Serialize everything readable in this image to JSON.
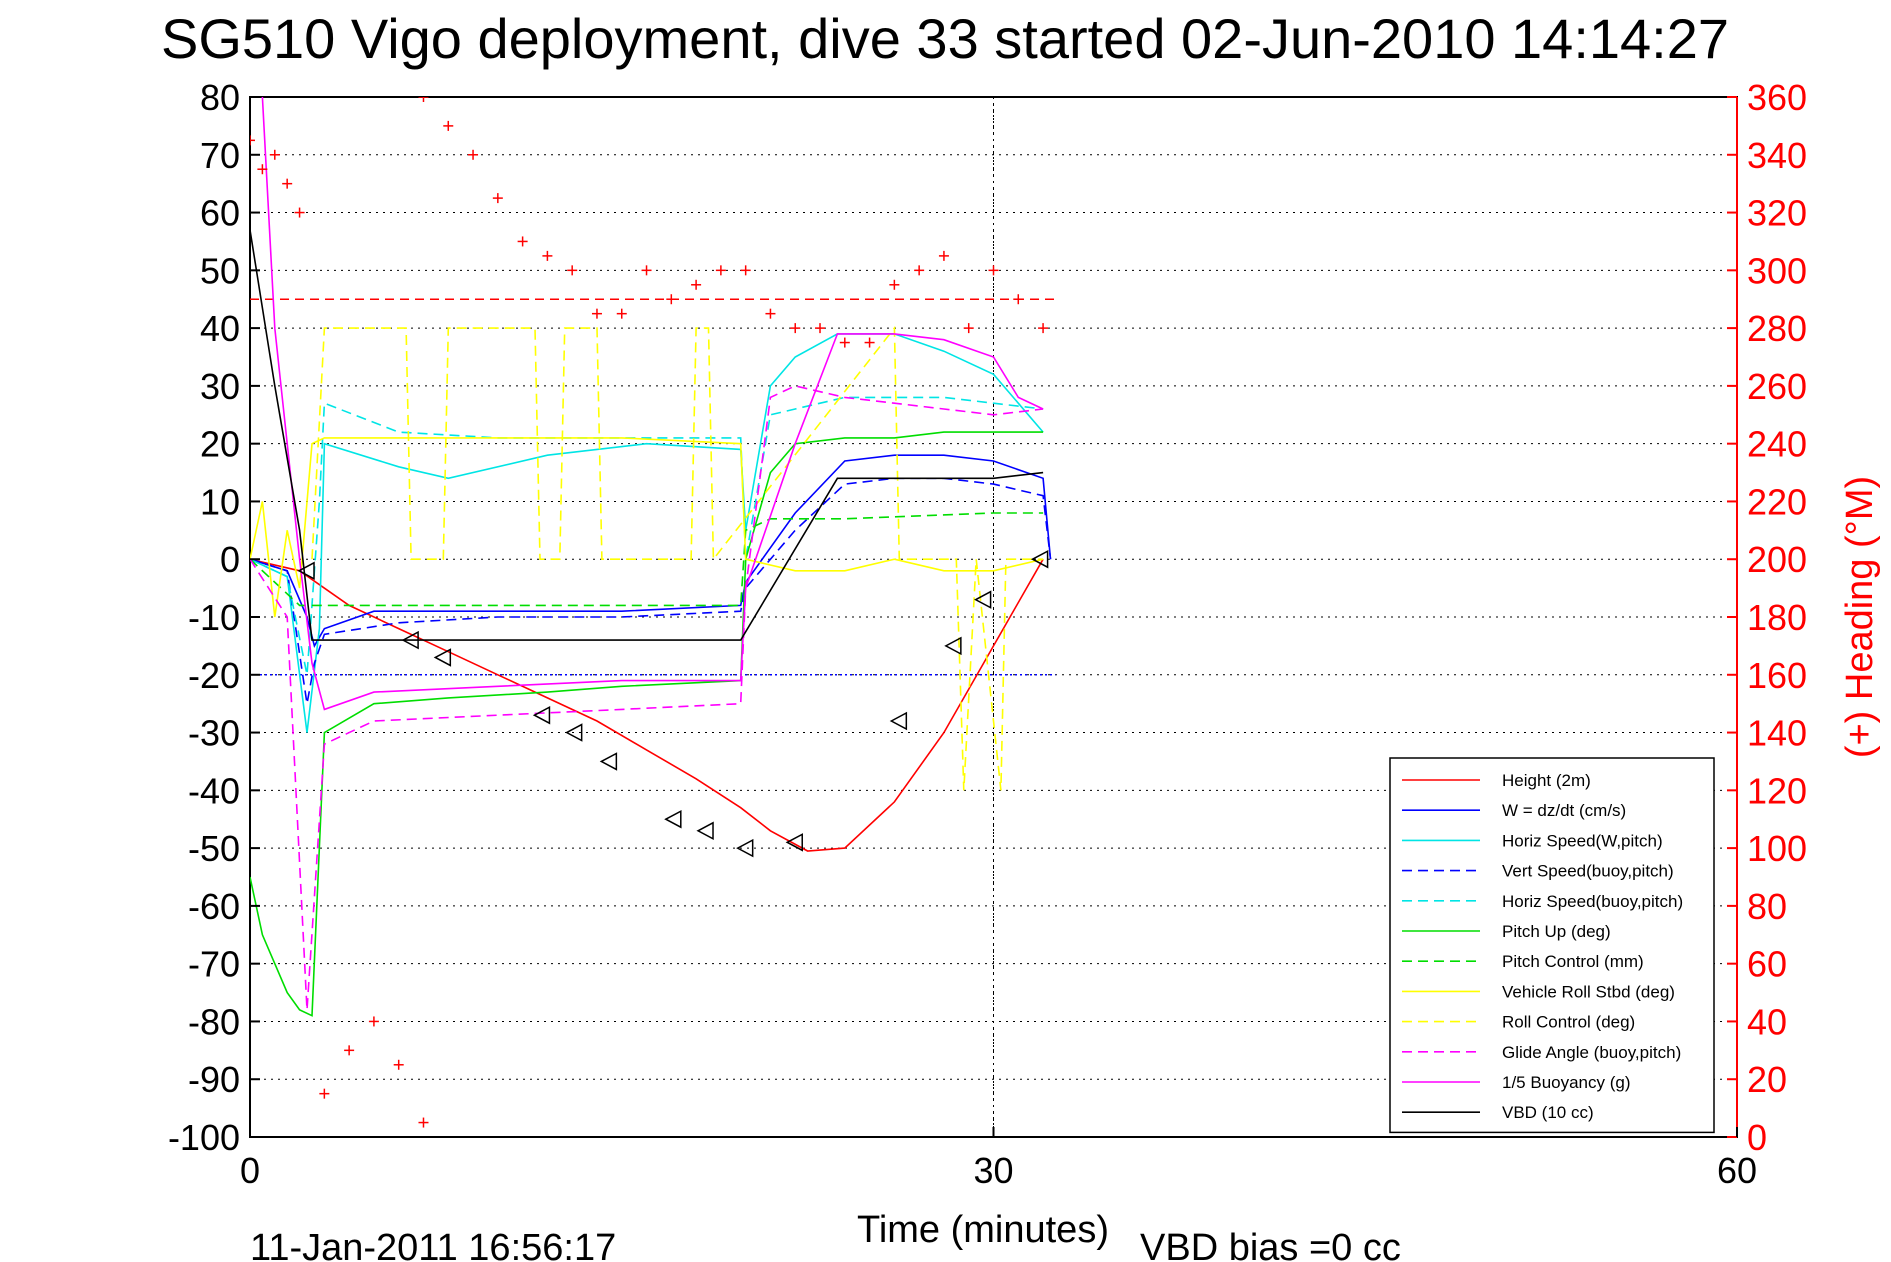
{
  "chart_data": {
    "type": "line",
    "title": "SG510 Vigo deployment, dive 33 started 02-Jun-2010 14:14:27",
    "xlabel": "Time (minutes)",
    "ylabel_right": "(+) Heading (°M)",
    "footer_left": "11-Jan-2011 16:56:17",
    "footer_right": "VBD bias =0 cc",
    "xlim": [
      0,
      60
    ],
    "ylim": [
      -100,
      80
    ],
    "y2lim": [
      0,
      360
    ],
    "x_ticks": [
      "0",
      "30",
      "60"
    ],
    "y_ticks": [
      "80",
      "70",
      "60",
      "50",
      "40",
      "30",
      "20",
      "10",
      "0",
      "-10",
      "-20",
      "-30",
      "-40",
      "-50",
      "-60",
      "-70",
      "-80",
      "-90",
      "-100"
    ],
    "y2_ticks": [
      "360",
      "340",
      "320",
      "300",
      "280",
      "260",
      "240",
      "220",
      "200",
      "180",
      "160",
      "140",
      "120",
      "100",
      "80",
      "60",
      "40",
      "20",
      "0"
    ],
    "grid": true,
    "legend_position": "bottom-right",
    "reference_lines": {
      "heading_target_deg": 290,
      "dotted_y": -20,
      "vertical_x": 30
    },
    "series": [
      {
        "name": "Height (2m)",
        "color": "#ff0000",
        "style": "solid",
        "x": [
          0,
          2,
          4,
          6,
          8,
          10,
          12,
          14,
          16,
          18,
          19.8,
          21,
          22.5,
          24,
          26,
          28,
          30,
          32
        ],
        "y": [
          0,
          -2,
          -8,
          -12,
          -16,
          -20,
          -24,
          -28,
          -33,
          -38,
          -43,
          -47,
          -50.5,
          -50,
          -42,
          -30,
          -15,
          0
        ]
      },
      {
        "name": "W = dz/dt (cm/s)",
        "color": "#0000ff",
        "style": "solid",
        "x": [
          0,
          1.5,
          2.3,
          2.6,
          3,
          5,
          10,
          15,
          19.8,
          20,
          22,
          24,
          26,
          28,
          30,
          32,
          32.3
        ],
        "y": [
          0,
          -2,
          -10,
          -15,
          -12,
          -9,
          -9,
          -9,
          -8,
          -4,
          8,
          17,
          18,
          18,
          17,
          14,
          0
        ]
      },
      {
        "name": "Horiz Speed(W,pitch)",
        "color": "#00e5e5",
        "style": "solid",
        "x": [
          0,
          1.5,
          2.3,
          2.8,
          3,
          6,
          8,
          12,
          16,
          19.8,
          20,
          21,
          22,
          23.7,
          26,
          28,
          30,
          31,
          32
        ],
        "y": [
          0,
          -3,
          -30,
          -12,
          20,
          16,
          14,
          18,
          20,
          19,
          5,
          30,
          35,
          39,
          39,
          36,
          32,
          27,
          22
        ]
      },
      {
        "name": "Vert Speed(buoy,pitch)",
        "color": "#0000ff",
        "style": "dashed",
        "x": [
          0,
          1.5,
          2.3,
          2.6,
          3,
          6,
          10,
          15,
          19.8,
          20,
          22,
          24,
          26,
          28,
          30,
          32,
          32.3
        ],
        "y": [
          0,
          -2,
          -25,
          -18,
          -13,
          -11,
          -10,
          -10,
          -9,
          -5,
          5,
          13,
          14,
          14,
          13,
          11,
          0
        ]
      },
      {
        "name": "Horiz Speed(buoy,pitch)",
        "color": "#00e5e5",
        "style": "dashed",
        "x": [
          0,
          1.5,
          2.3,
          2.8,
          3,
          6,
          10,
          15,
          19.8,
          20,
          21,
          22,
          24,
          26,
          28,
          30,
          32
        ],
        "y": [
          0,
          -3,
          -20,
          10,
          27,
          22,
          21,
          21,
          21,
          0,
          25,
          26,
          28,
          28,
          28,
          27,
          26
        ]
      },
      {
        "name": "Pitch Up (deg)",
        "color": "#00dd00",
        "style": "solid",
        "x": [
          0,
          0.5,
          1,
          1.5,
          2,
          2.5,
          3,
          5,
          8,
          12,
          15,
          19.8,
          20,
          21,
          22,
          24,
          26,
          28,
          30,
          32
        ],
        "y": [
          -55,
          -65,
          -70,
          -75,
          -78,
          -79,
          -30,
          -25,
          -24,
          -23,
          -22,
          -21,
          0,
          15,
          20,
          21,
          21,
          22,
          22,
          22
        ]
      },
      {
        "name": "Pitch Control (mm)",
        "color": "#00dd00",
        "style": "dashed",
        "x": [
          0,
          2,
          2.5,
          3,
          10,
          19.8,
          20,
          21,
          24,
          30,
          32
        ],
        "y": [
          0,
          -8,
          -8,
          -8,
          -8,
          -8,
          5,
          7,
          7,
          8,
          8
        ]
      },
      {
        "name": "Vehicle Roll Stbd (deg)",
        "color": "#ffff00",
        "style": "solid",
        "x": [
          0,
          0.5,
          1,
          1.5,
          2,
          2.5,
          3,
          5,
          10,
          15,
          19.8,
          20,
          22,
          24,
          26,
          28,
          30,
          32
        ],
        "y": [
          0,
          10,
          -10,
          5,
          -5,
          20,
          21,
          21,
          21,
          21,
          20,
          0,
          -2,
          -2,
          0,
          -2,
          -2,
          0
        ]
      },
      {
        "name": "Roll Control (deg)",
        "color": "#ffff00",
        "style": "dashed",
        "x": [
          2.5,
          3,
          6.3,
          6.5,
          7.8,
          8,
          11.5,
          11.7,
          12.5,
          12.7,
          14,
          14.2,
          17.8,
          18,
          18.5,
          18.7,
          26,
          26.2,
          28.5,
          28.8,
          29.3,
          30.3,
          30.5,
          32
        ],
        "y": [
          0,
          40,
          40,
          0,
          0,
          40,
          40,
          0,
          0,
          40,
          40,
          0,
          0,
          40,
          40,
          0,
          40,
          0,
          0,
          -40,
          0,
          -40,
          0,
          0
        ]
      },
      {
        "name": "Glide Angle (buoy,pitch)",
        "color": "#ff00ff",
        "style": "dashed",
        "x": [
          0,
          1.5,
          2.3,
          3,
          5,
          10,
          15,
          19.8,
          20,
          21,
          22,
          24,
          26,
          28,
          30,
          32
        ],
        "y": [
          0,
          -10,
          -78,
          -32,
          -28,
          -27,
          -26,
          -25,
          -5,
          28,
          30,
          28,
          27,
          26,
          25,
          26
        ]
      },
      {
        "name": "1/5 Buoyancy (g)",
        "color": "#ff00ff",
        "style": "solid",
        "x": [
          0.5,
          1,
          2,
          2.5,
          3,
          5,
          10,
          15,
          19.8,
          20,
          22,
          23.7,
          26,
          28,
          30,
          31,
          32
        ],
        "y": [
          80,
          40,
          0,
          -18,
          -26,
          -23,
          -22,
          -21,
          -21,
          -5,
          20,
          39,
          39,
          38,
          35,
          28,
          26
        ]
      },
      {
        "name": "VBD (10 cc)",
        "color": "#000000",
        "style": "solid",
        "x": [
          0,
          1,
          2,
          2.5,
          10,
          19.8,
          23.7,
          30,
          32
        ],
        "y": [
          57,
          30,
          5,
          -14,
          -14,
          -14,
          14,
          14,
          15
        ]
      }
    ],
    "heading_points": {
      "name": "Heading",
      "color": "#ff0000",
      "marker": "+",
      "axis": "right",
      "x": [
        0,
        0.5,
        1,
        1.5,
        2,
        7,
        8,
        9,
        10,
        11,
        12,
        13,
        14,
        15,
        16,
        17,
        18,
        19,
        20,
        21,
        22,
        23,
        24,
        25,
        26,
        27,
        28,
        29,
        30,
        31,
        32,
        3,
        4,
        5,
        6,
        7
      ],
      "y": [
        345,
        335,
        340,
        330,
        320,
        360,
        350,
        340,
        325,
        310,
        305,
        300,
        285,
        285,
        300,
        290,
        295,
        300,
        300,
        285,
        280,
        280,
        275,
        275,
        295,
        300,
        305,
        280,
        300,
        290,
        280,
        15,
        30,
        40,
        25,
        5
      ]
    },
    "depth_markers": {
      "color": "#000000",
      "marker": "triangle",
      "x": [
        2.3,
        6.5,
        7.8,
        11.8,
        13.1,
        14.5,
        17.1,
        18.4,
        20,
        22,
        26.2,
        28.4,
        29.6,
        31.9
      ],
      "y": [
        -2,
        -14,
        -17,
        -27,
        -30,
        -35,
        -45,
        -47,
        -50,
        -49,
        -28,
        -15,
        -7,
        0
      ]
    }
  }
}
